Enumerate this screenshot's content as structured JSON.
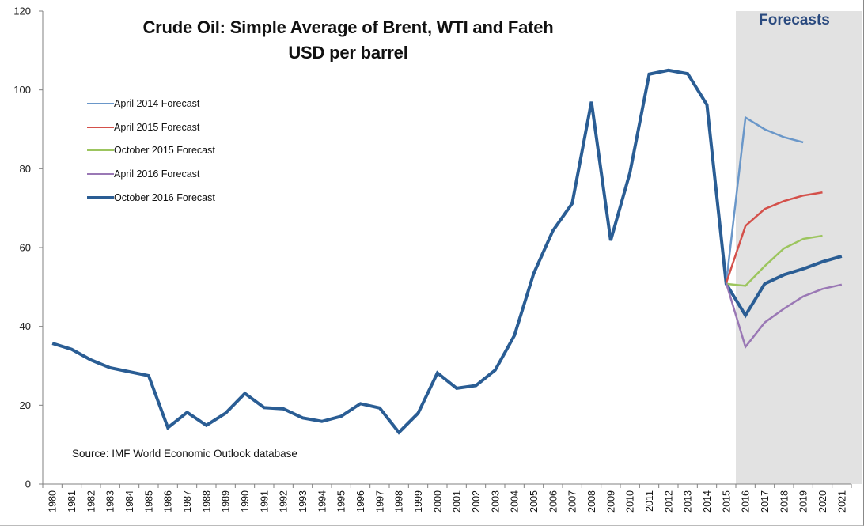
{
  "chart_data": {
    "type": "line",
    "title": "Crude Oil: Simple Average of Brent, WTI and Fateh",
    "subtitle": "USD per barrel",
    "ylim": [
      0,
      120
    ],
    "yticks": [
      0,
      20,
      40,
      60,
      80,
      100,
      120
    ],
    "grid": false,
    "x": [
      1980,
      1981,
      1982,
      1983,
      1984,
      1985,
      1986,
      1987,
      1988,
      1989,
      1990,
      1991,
      1992,
      1993,
      1994,
      1995,
      1996,
      1997,
      1998,
      1999,
      2000,
      2001,
      2002,
      2003,
      2004,
      2005,
      2006,
      2007,
      2008,
      2009,
      2010,
      2011,
      2012,
      2013,
      2014,
      2015,
      2016,
      2017,
      2018,
      2019,
      2020,
      2021
    ],
    "forecast_region": {
      "label": "Forecasts",
      "from": 2015.5,
      "to": 2021.5,
      "color": "#e2e2e2"
    },
    "series": [
      {
        "name": "April 2014 Forecast",
        "color": "#6a97c9",
        "width": 2.5,
        "points": [
          [
            2015,
            51
          ],
          [
            2016,
            93
          ],
          [
            2017,
            90
          ],
          [
            2018,
            88
          ],
          [
            2019,
            86.7
          ]
        ]
      },
      {
        "name": "April 2015 Forecast",
        "color": "#d4504a",
        "width": 2.5,
        "points": [
          [
            2015,
            51
          ],
          [
            2016,
            65.5
          ],
          [
            2017,
            69.8
          ],
          [
            2018,
            71.8
          ],
          [
            2019,
            73.2
          ],
          [
            2020,
            74
          ]
        ]
      },
      {
        "name": "October 2015 Forecast",
        "color": "#9cc55e",
        "width": 2.5,
        "points": [
          [
            2015,
            50.8
          ],
          [
            2016,
            50.3
          ],
          [
            2017,
            55.3
          ],
          [
            2018,
            59.8
          ],
          [
            2019,
            62.2
          ],
          [
            2020,
            63
          ]
        ]
      },
      {
        "name": "April 2016 Forecast",
        "color": "#9a78b5",
        "width": 2.5,
        "points": [
          [
            2015,
            51
          ],
          [
            2016,
            34.8
          ],
          [
            2017,
            41
          ],
          [
            2018,
            44.5
          ],
          [
            2019,
            47.6
          ],
          [
            2020,
            49.5
          ],
          [
            2021,
            50.6
          ]
        ]
      },
      {
        "name": "October 2016 Forecast",
        "color": "#2a5d94",
        "width": 4,
        "points": [
          [
            1980,
            35.7
          ],
          [
            1981,
            34.2
          ],
          [
            1982,
            31.5
          ],
          [
            1983,
            29.5
          ],
          [
            1984,
            28.5
          ],
          [
            1985,
            27.5
          ],
          [
            1986,
            14.3
          ],
          [
            1987,
            18.2
          ],
          [
            1988,
            14.9
          ],
          [
            1989,
            18
          ],
          [
            1990,
            23
          ],
          [
            1991,
            19.4
          ],
          [
            1992,
            19.1
          ],
          [
            1993,
            16.8
          ],
          [
            1994,
            15.9
          ],
          [
            1995,
            17.2
          ],
          [
            1996,
            20.4
          ],
          [
            1997,
            19.3
          ],
          [
            1998,
            13.1
          ],
          [
            1999,
            18
          ],
          [
            2000,
            28.2
          ],
          [
            2001,
            24.3
          ],
          [
            2002,
            25
          ],
          [
            2003,
            28.9
          ],
          [
            2004,
            37.7
          ],
          [
            2005,
            53.4
          ],
          [
            2006,
            64.3
          ],
          [
            2007,
            71.2
          ],
          [
            2008,
            97
          ],
          [
            2009,
            61.8
          ],
          [
            2010,
            79
          ],
          [
            2011,
            104
          ],
          [
            2012,
            105
          ],
          [
            2013,
            104.1
          ],
          [
            2014,
            96.2
          ],
          [
            2015,
            50.8
          ],
          [
            2016,
            42.8
          ],
          [
            2017,
            50.8
          ],
          [
            2018,
            53.1
          ],
          [
            2019,
            54.6
          ],
          [
            2020,
            56.4
          ],
          [
            2021,
            57.8
          ]
        ]
      }
    ],
    "source": "Source: IMF World Economic Outlook database"
  }
}
